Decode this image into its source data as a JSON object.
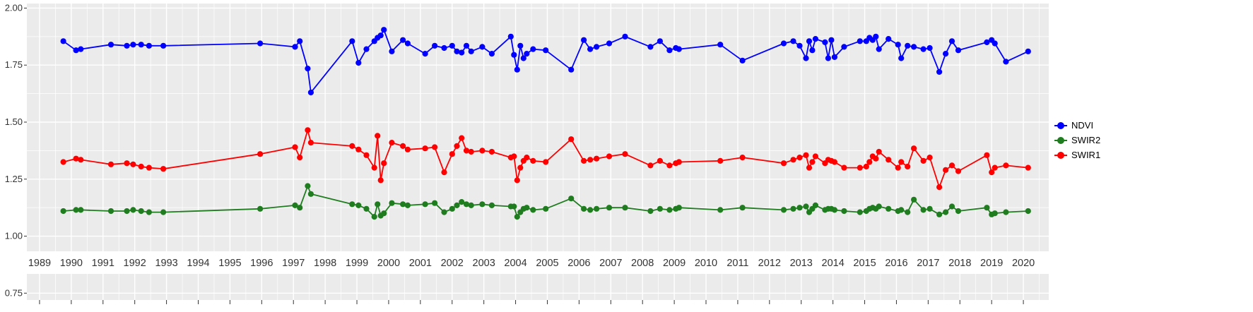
{
  "chart_data": {
    "type": "line",
    "title": "",
    "xlabel": "",
    "ylabel": "",
    "panel_bg": "#EBEBEB",
    "grid_color": "#FFFFFF",
    "axis_text_color": "#333333",
    "xlim": [
      1988.6,
      2020.8
    ],
    "ylim": [
      0.72,
      2.02
    ],
    "x_ticks": [
      1989,
      1990,
      1991,
      1992,
      1993,
      1994,
      1995,
      1996,
      1997,
      1998,
      1999,
      2000,
      2001,
      2002,
      2003,
      2004,
      2005,
      2006,
      2007,
      2008,
      2009,
      2010,
      2011,
      2012,
      2013,
      2014,
      2015,
      2016,
      2017,
      2018,
      2019,
      2020
    ],
    "y_ticks": [
      2.0,
      1.75,
      1.5,
      1.25,
      1.0,
      0.75
    ],
    "y_tick_labels": [
      "2.00",
      "1.75",
      "1.50",
      "1.25",
      "1.00",
      "0.75"
    ],
    "legend_position": "right",
    "x": [
      1989.75,
      1990.15,
      1990.3,
      1991.25,
      1991.75,
      1991.95,
      1992.2,
      1992.45,
      1992.9,
      1995.95,
      1997.05,
      1997.2,
      1997.45,
      1997.55,
      1998.85,
      1999.05,
      1999.3,
      1999.55,
      1999.65,
      1999.75,
      1999.85,
      2000.1,
      2000.45,
      2000.6,
      2001.15,
      2001.45,
      2001.75,
      2002.0,
      2002.15,
      2002.3,
      2002.45,
      2002.6,
      2002.95,
      2003.25,
      2003.85,
      2003.95,
      2004.05,
      2004.15,
      2004.25,
      2004.35,
      2004.55,
      2004.95,
      2005.75,
      2006.15,
      2006.35,
      2006.55,
      2006.95,
      2007.45,
      2008.25,
      2008.55,
      2008.85,
      2009.05,
      2009.15,
      2010.45,
      2011.15,
      2012.45,
      2012.75,
      2012.95,
      2013.15,
      2013.25,
      2013.35,
      2013.45,
      2013.75,
      2013.85,
      2013.95,
      2014.05,
      2014.35,
      2014.85,
      2015.05,
      2015.15,
      2015.25,
      2015.35,
      2015.45,
      2015.75,
      2016.05,
      2016.15,
      2016.35,
      2016.55,
      2016.85,
      2017.05,
      2017.35,
      2017.55,
      2017.75,
      2017.95,
      2018.85,
      2019.0,
      2019.1,
      2019.45,
      2020.15
    ],
    "series": [
      {
        "name": "NDVI",
        "color": "#0000ff",
        "values": [
          1.855,
          1.815,
          1.82,
          1.84,
          1.835,
          1.84,
          1.84,
          1.835,
          1.835,
          1.845,
          1.83,
          1.855,
          1.735,
          1.63,
          1.855,
          1.76,
          1.82,
          1.855,
          1.87,
          1.88,
          1.905,
          1.81,
          1.86,
          1.845,
          1.8,
          1.835,
          1.825,
          1.835,
          1.81,
          1.805,
          1.835,
          1.81,
          1.83,
          1.8,
          1.875,
          1.795,
          1.73,
          1.835,
          1.78,
          1.8,
          1.82,
          1.815,
          1.73,
          1.86,
          1.82,
          1.83,
          1.845,
          1.875,
          1.83,
          1.855,
          1.815,
          1.825,
          1.82,
          1.84,
          1.77,
          1.845,
          1.855,
          1.835,
          1.78,
          1.855,
          1.815,
          1.865,
          1.85,
          1.78,
          1.86,
          1.785,
          1.83,
          1.855,
          1.855,
          1.87,
          1.86,
          1.875,
          1.82,
          1.865,
          1.84,
          1.78,
          1.835,
          1.83,
          1.82,
          1.825,
          1.72,
          1.8,
          1.855,
          1.815,
          1.85,
          1.86,
          1.845,
          1.765,
          1.81
        ]
      },
      {
        "name": "SWIR2",
        "color": "#1f7d1f",
        "values": [
          1.11,
          1.115,
          1.115,
          1.11,
          1.11,
          1.115,
          1.11,
          1.105,
          1.105,
          1.12,
          1.135,
          1.125,
          1.22,
          1.185,
          1.14,
          1.135,
          1.12,
          1.085,
          1.14,
          1.09,
          1.1,
          1.145,
          1.14,
          1.135,
          1.14,
          1.145,
          1.105,
          1.12,
          1.135,
          1.15,
          1.14,
          1.135,
          1.14,
          1.135,
          1.13,
          1.13,
          1.085,
          1.105,
          1.12,
          1.125,
          1.115,
          1.12,
          1.165,
          1.12,
          1.115,
          1.12,
          1.125,
          1.125,
          1.11,
          1.12,
          1.115,
          1.12,
          1.125,
          1.115,
          1.125,
          1.115,
          1.12,
          1.125,
          1.13,
          1.105,
          1.12,
          1.135,
          1.115,
          1.12,
          1.12,
          1.115,
          1.11,
          1.105,
          1.11,
          1.12,
          1.125,
          1.12,
          1.13,
          1.12,
          1.11,
          1.115,
          1.105,
          1.16,
          1.115,
          1.12,
          1.095,
          1.105,
          1.13,
          1.11,
          1.125,
          1.095,
          1.1,
          1.105,
          1.11
        ]
      },
      {
        "name": "SWIR1",
        "color": "#ff0000",
        "values": [
          1.325,
          1.34,
          1.335,
          1.315,
          1.32,
          1.315,
          1.305,
          1.3,
          1.295,
          1.36,
          1.39,
          1.345,
          1.465,
          1.41,
          1.395,
          1.38,
          1.355,
          1.3,
          1.44,
          1.245,
          1.32,
          1.41,
          1.395,
          1.38,
          1.385,
          1.39,
          1.28,
          1.36,
          1.395,
          1.43,
          1.375,
          1.37,
          1.375,
          1.37,
          1.345,
          1.35,
          1.245,
          1.3,
          1.33,
          1.345,
          1.33,
          1.325,
          1.425,
          1.33,
          1.335,
          1.34,
          1.35,
          1.36,
          1.31,
          1.33,
          1.31,
          1.32,
          1.325,
          1.33,
          1.345,
          1.32,
          1.335,
          1.345,
          1.355,
          1.3,
          1.325,
          1.35,
          1.32,
          1.335,
          1.33,
          1.325,
          1.3,
          1.3,
          1.305,
          1.325,
          1.35,
          1.34,
          1.37,
          1.335,
          1.3,
          1.325,
          1.305,
          1.385,
          1.33,
          1.345,
          1.215,
          1.29,
          1.31,
          1.285,
          1.355,
          1.28,
          1.3,
          1.31,
          1.3
        ]
      }
    ],
    "legend_entries": [
      "NDVI",
      "SWIR2",
      "SWIR1"
    ]
  }
}
